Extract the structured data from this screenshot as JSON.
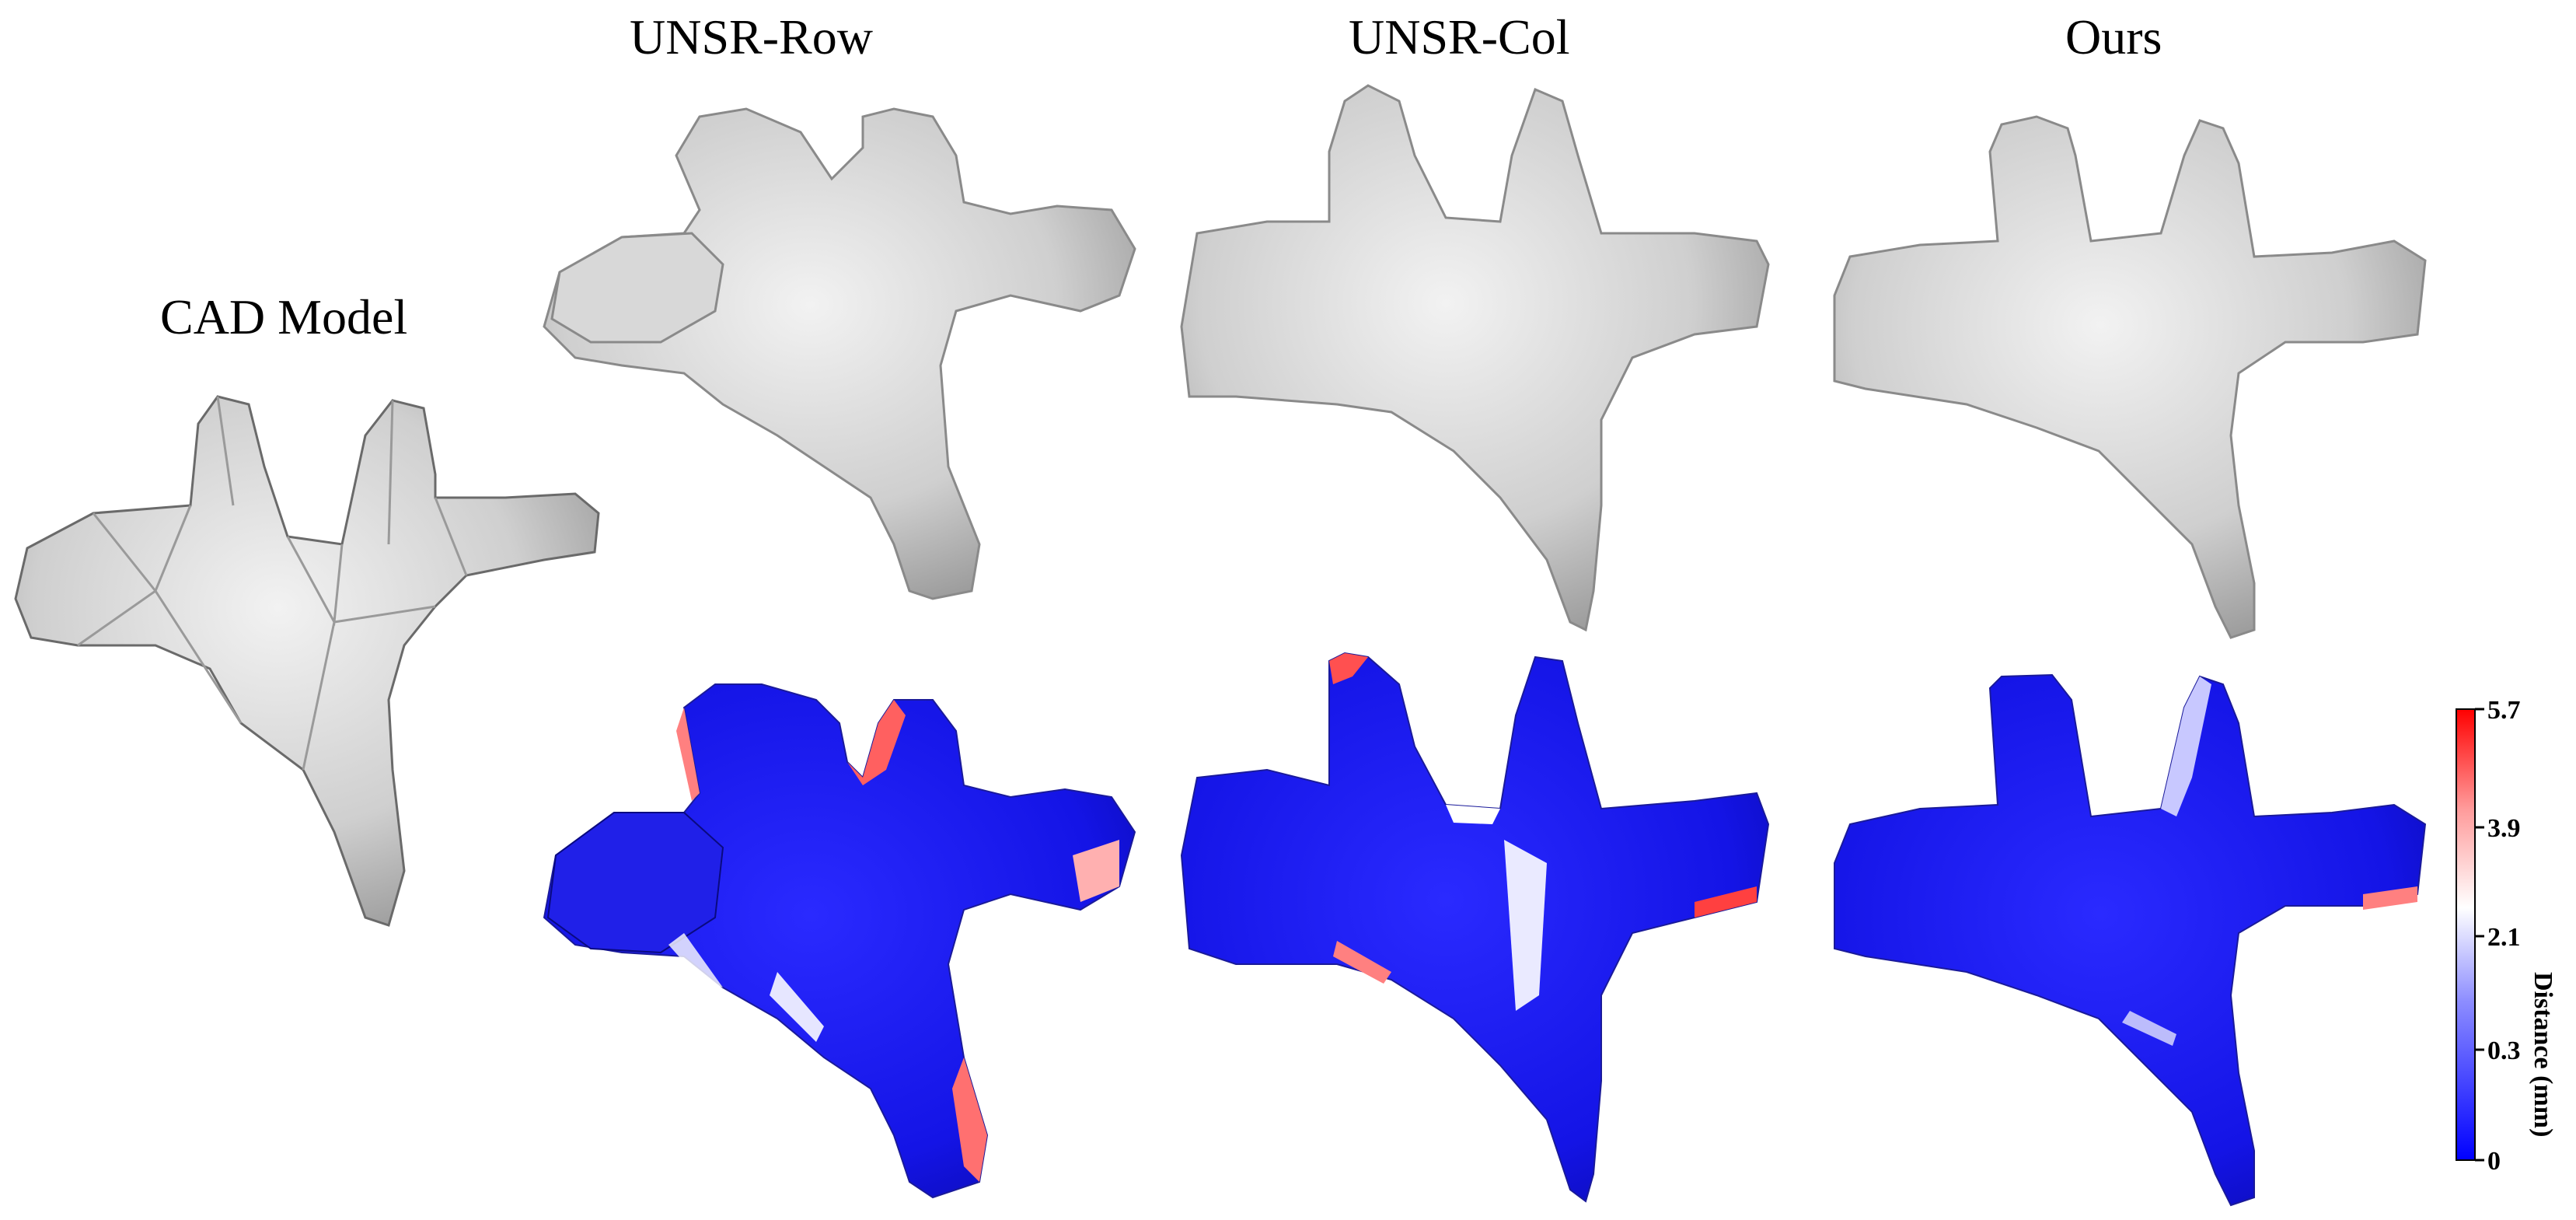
{
  "labels": {
    "cad_model": "CAD Model",
    "unsr_row": "UNSR-Row",
    "unsr_col": "UNSR-Col",
    "ours": "Ours"
  },
  "colorbar": {
    "title": "Distance (mm)",
    "ticks": [
      "5.7",
      "3.9",
      "2.1",
      "0.3",
      "0"
    ],
    "colors": {
      "high": "#ff0000",
      "mid": "#ffffff",
      "low": "#0000ff"
    }
  },
  "colors": {
    "mesh_gray": "#d4d4d4",
    "mesh_shadow": "#8a8a8a",
    "error_blue": "#1010e0",
    "error_red": "#e83a3a"
  }
}
